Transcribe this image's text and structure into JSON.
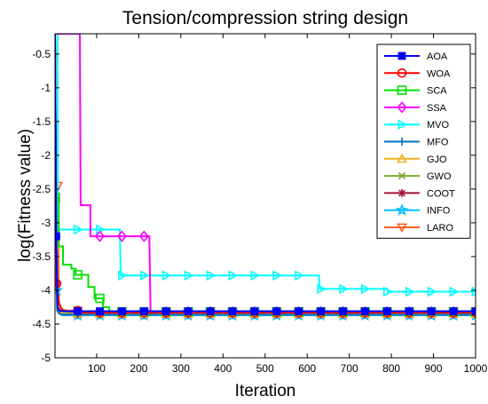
{
  "chart_data": {
    "type": "line",
    "title": "Tension/compression string design",
    "xlabel": "Iteration",
    "ylabel": "log(Fitness value)",
    "xlim": [
      1,
      1000
    ],
    "ylim": [
      -5,
      -0.2
    ],
    "xticks": [
      100,
      200,
      300,
      400,
      500,
      600,
      700,
      800,
      900,
      1000
    ],
    "yticks": [
      -0.5,
      -1,
      -1.5,
      -2,
      -2.5,
      -3,
      -3.5,
      -4,
      -4.5,
      -5
    ],
    "grid": false,
    "legend_position": "top-right",
    "series": [
      {
        "name": "AOA",
        "color": "#0000ff",
        "marker": "filled-square",
        "points": [
          [
            1,
            -0.2
          ],
          [
            4,
            -3.2
          ],
          [
            7,
            -4.25
          ],
          [
            12,
            -4.3
          ],
          [
            20,
            -4.31
          ],
          [
            60,
            -4.31
          ],
          [
            1000,
            -4.31
          ]
        ]
      },
      {
        "name": "WOA",
        "color": "#ff0000",
        "marker": "circle",
        "points": [
          [
            1,
            -0.2
          ],
          [
            5,
            -3.9
          ],
          [
            10,
            -4.2
          ],
          [
            20,
            -4.3
          ],
          [
            60,
            -4.33
          ],
          [
            1000,
            -4.33
          ]
        ]
      },
      {
        "name": "SCA",
        "color": "#00e000",
        "marker": "square",
        "points": [
          [
            1,
            -0.2
          ],
          [
            2,
            -2.63
          ],
          [
            10,
            -2.63
          ],
          [
            10,
            -3.35
          ],
          [
            20,
            -3.35
          ],
          [
            20,
            -3.62
          ],
          [
            40,
            -3.62
          ],
          [
            40,
            -3.68
          ],
          [
            50,
            -3.68
          ],
          [
            50,
            -3.77
          ],
          [
            80,
            -3.77
          ],
          [
            80,
            -3.95
          ],
          [
            95,
            -3.95
          ],
          [
            95,
            -4.12
          ],
          [
            115,
            -4.12
          ],
          [
            115,
            -4.25
          ],
          [
            130,
            -4.25
          ],
          [
            130,
            -4.32
          ],
          [
            1000,
            -4.32
          ]
        ]
      },
      {
        "name": "SSA",
        "color": "#ff00ff",
        "marker": "diamond",
        "points": [
          [
            1,
            -0.2
          ],
          [
            60,
            -0.2
          ],
          [
            62,
            -2.74
          ],
          [
            85,
            -2.74
          ],
          [
            85,
            -3.2
          ],
          [
            225,
            -3.2
          ],
          [
            228,
            -4.32
          ],
          [
            1000,
            -4.32
          ]
        ]
      },
      {
        "name": "MVO",
        "color": "#00ffff",
        "marker": "triangle-right",
        "points": [
          [
            1,
            -0.2
          ],
          [
            7,
            -0.2
          ],
          [
            8,
            -3.1
          ],
          [
            155,
            -3.1
          ],
          [
            157,
            -3.78
          ],
          [
            628,
            -3.78
          ],
          [
            630,
            -3.98
          ],
          [
            790,
            -3.98
          ],
          [
            792,
            -4.02
          ],
          [
            1000,
            -4.02
          ]
        ]
      },
      {
        "name": "MFO",
        "color": "#0072bd",
        "marker": "plus",
        "points": [
          [
            1,
            -0.2
          ],
          [
            3,
            -2.9
          ],
          [
            6,
            -4.3
          ],
          [
            15,
            -4.36
          ],
          [
            1000,
            -4.36
          ]
        ]
      },
      {
        "name": "GJO",
        "color": "#edb120",
        "marker": "triangle-up",
        "points": [
          [
            1,
            -0.2
          ],
          [
            3,
            -3.35
          ],
          [
            8,
            -4.25
          ],
          [
            20,
            -4.35
          ],
          [
            1000,
            -4.35
          ]
        ]
      },
      {
        "name": "GWO",
        "color": "#77ac30",
        "marker": "x",
        "points": [
          [
            1,
            -0.2
          ],
          [
            2,
            -2.85
          ],
          [
            6,
            -4.2
          ],
          [
            15,
            -4.34
          ],
          [
            1000,
            -4.34
          ]
        ]
      },
      {
        "name": "COOT",
        "color": "#a2142f",
        "marker": "star",
        "points": [
          [
            1,
            -0.2
          ],
          [
            4,
            -3.9
          ],
          [
            9,
            -4.33
          ],
          [
            15,
            -4.36
          ],
          [
            1000,
            -4.36
          ]
        ]
      },
      {
        "name": "INFO",
        "color": "#00bfff",
        "marker": "pentagram",
        "points": [
          [
            1,
            -0.2
          ],
          [
            5,
            -4.0
          ],
          [
            12,
            -4.35
          ],
          [
            20,
            -4.37
          ],
          [
            1000,
            -4.37
          ]
        ]
      },
      {
        "name": "LARO",
        "color": "#ff6120",
        "marker": "triangle-down",
        "points": [
          [
            1,
            -2.45
          ],
          [
            8,
            -2.45
          ],
          [
            10,
            -4.15
          ],
          [
            15,
            -4.28
          ],
          [
            30,
            -4.3
          ],
          [
            60,
            -4.3
          ],
          [
            65,
            -4.35
          ],
          [
            1000,
            -4.35
          ]
        ]
      }
    ]
  }
}
